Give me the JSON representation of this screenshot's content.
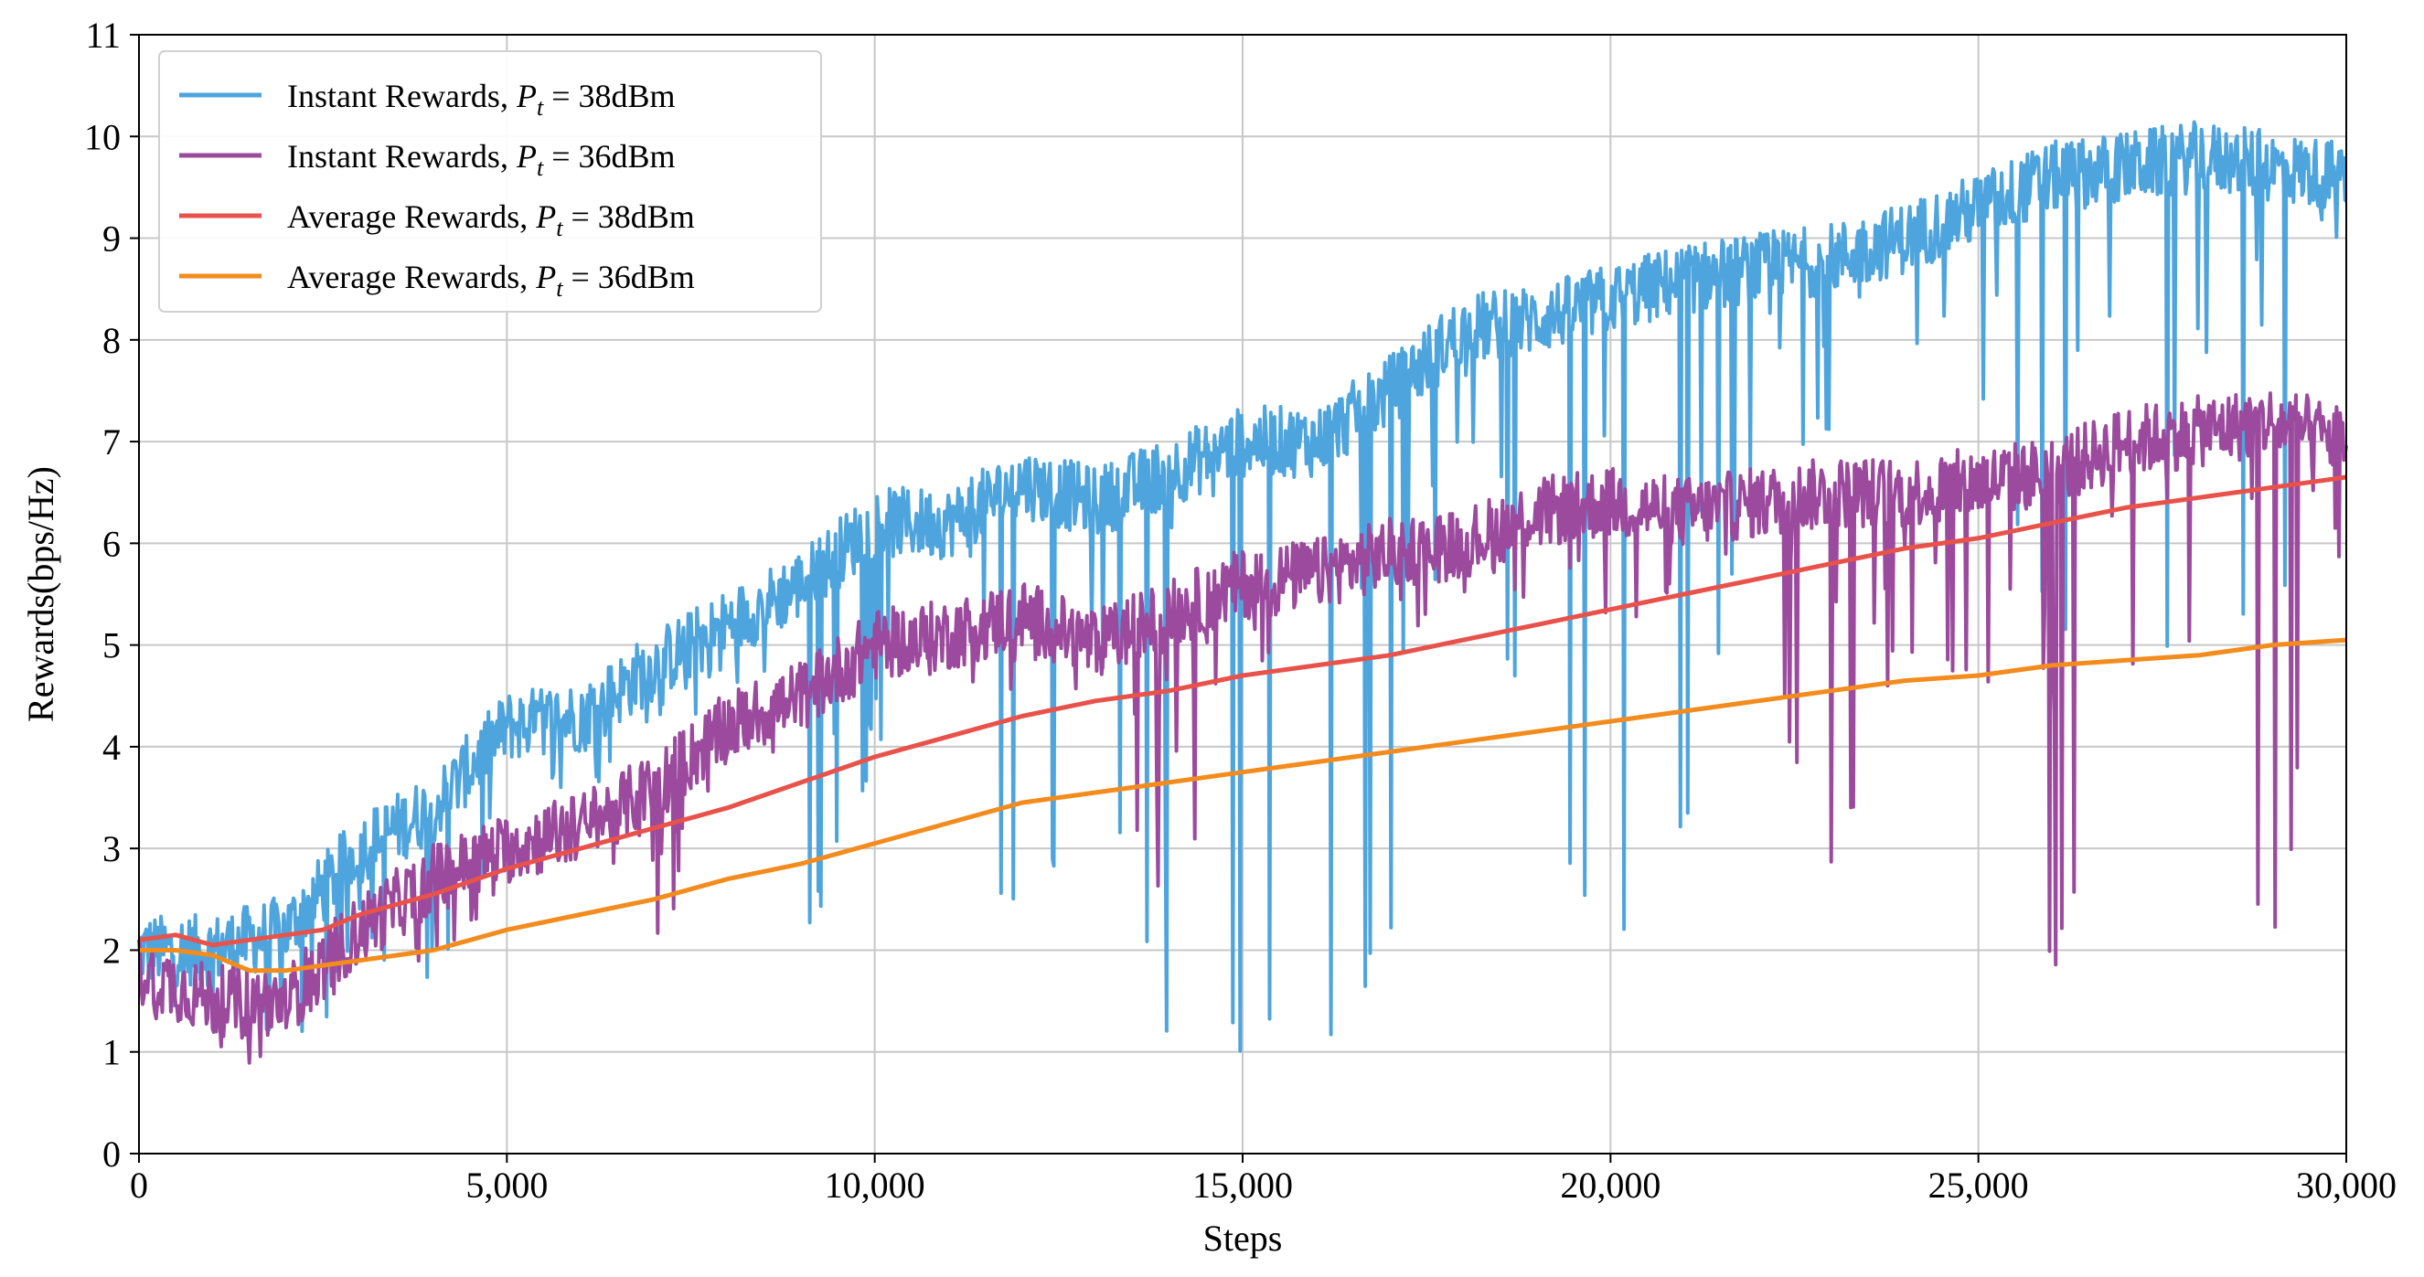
{
  "chart_data": {
    "type": "line",
    "title": "",
    "xlabel": "Steps",
    "ylabel": "Rewards(bps/Hz)",
    "xlim": [
      0,
      30000
    ],
    "ylim": [
      0,
      11
    ],
    "grid": true,
    "legend_position": "top-left",
    "xticks": [
      0,
      5000,
      10000,
      15000,
      20000,
      25000,
      30000
    ],
    "xtick_labels": [
      "0",
      "5,000",
      "10,000",
      "15,000",
      "20,000",
      "25,000",
      "30,000"
    ],
    "yticks": [
      0,
      1,
      2,
      3,
      4,
      5,
      6,
      7,
      8,
      9,
      10,
      11
    ],
    "ytick_labels": [
      "0",
      "1",
      "2",
      "3",
      "4",
      "5",
      "6",
      "7",
      "8",
      "9",
      "10",
      "11"
    ],
    "series": [
      {
        "name": "Instant Rewards, Pt = 38dBm",
        "legend_prefix": "Instant Rewards, ",
        "legend_suffix": " = 38dBm",
        "color": "#4EA5DE",
        "x": [
          0,
          1000,
          2000,
          3000,
          4000,
          5000,
          6000,
          7000,
          8000,
          9000,
          10000,
          11000,
          12000,
          13000,
          14000,
          15000,
          16000,
          17000,
          18000,
          19000,
          20000,
          21000,
          22000,
          23000,
          24000,
          25000,
          26000,
          27000,
          28000,
          29000,
          30000
        ],
        "values": [
          2.0,
          2.0,
          2.2,
          3.0,
          3.4,
          4.2,
          4.3,
          4.8,
          5.2,
          5.6,
          6.2,
          6.2,
          6.6,
          6.4,
          6.7,
          7.0,
          7.0,
          7.5,
          8.1,
          8.2,
          8.4,
          8.6,
          8.7,
          8.8,
          9.0,
          9.3,
          9.6,
          9.7,
          9.8,
          9.7,
          9.6
        ],
        "dips": [
          [
            1.4,
            1.2,
            0.9,
            1.6,
            1.5,
            3.1,
            3.6,
            3.8,
            4.5,
            1.7,
            3.9,
            4.7,
            1.7,
            3.5,
            0.9,
            1.0,
            0.85,
            2.0,
            7.2,
            3.0,
            1.5,
            2.7,
            7.1,
            6.8,
            7.4,
            7.5,
            4.8,
            4.6,
            5.0,
            4.6,
            9.4
          ]
        ]
      },
      {
        "name": "Instant Rewards, Pt = 36dBm",
        "legend_prefix": "Instant Rewards, ",
        "legend_suffix": " = 36dBm",
        "color": "#9B4A9E",
        "x": [
          0,
          1000,
          2000,
          3000,
          4000,
          5000,
          6000,
          7000,
          8000,
          9000,
          10000,
          11000,
          12000,
          13000,
          14000,
          15000,
          16000,
          17000,
          18000,
          19000,
          20000,
          21000,
          22000,
          23000,
          24000,
          25000,
          26000,
          27000,
          28000,
          29000,
          30000
        ],
        "values": [
          1.8,
          1.5,
          1.5,
          2.2,
          2.7,
          3.0,
          3.2,
          3.6,
          4.2,
          4.5,
          5.0,
          5.1,
          5.3,
          5.0,
          5.3,
          5.6,
          5.7,
          5.9,
          6.0,
          6.3,
          6.4,
          6.3,
          6.4,
          6.5,
          6.5,
          6.6,
          6.7,
          7.0,
          7.1,
          7.2,
          7.0
        ],
        "dips": [
          [
            0.6,
            0.9,
            0.85,
            1.8,
            1.4,
            2.8,
            3.0,
            1.9,
            3.8,
            4.0,
            4.5,
            4.4,
            4.5,
            4.4,
            2.0,
            4.6,
            4.8,
            5.0,
            5.4,
            5.4,
            4.9,
            5.0,
            5.0,
            2.7,
            4.8,
            4.7,
            1.4,
            5.0,
            2.6,
            1.7,
            6.3
          ]
        ]
      },
      {
        "name": "Average Rewards, Pt = 38dBm",
        "legend_prefix": "Average Rewards, ",
        "legend_suffix": " = 38dBm",
        "color": "#E8524A",
        "x": [
          0,
          500,
          1000,
          1500,
          2000,
          2500,
          3000,
          4000,
          5000,
          6000,
          7000,
          8000,
          9000,
          10000,
          11000,
          12000,
          13000,
          14000,
          15000,
          16000,
          17000,
          18000,
          19000,
          20000,
          21000,
          22000,
          23000,
          24000,
          25000,
          26000,
          27000,
          28000,
          29000,
          30000
        ],
        "values": [
          2.1,
          2.15,
          2.05,
          2.1,
          2.15,
          2.2,
          2.35,
          2.55,
          2.8,
          3.0,
          3.2,
          3.4,
          3.65,
          3.9,
          4.1,
          4.3,
          4.45,
          4.55,
          4.7,
          4.8,
          4.9,
          5.05,
          5.2,
          5.35,
          5.5,
          5.65,
          5.8,
          5.95,
          6.05,
          6.2,
          6.35,
          6.45,
          6.55,
          6.65
        ]
      },
      {
        "name": "Average Rewards, Pt = 36dBm",
        "legend_prefix": "Average Rewards, ",
        "legend_suffix": " = 36dBm",
        "color": "#F38B1D",
        "x": [
          0,
          500,
          1000,
          1500,
          2000,
          2500,
          3000,
          4000,
          5000,
          6000,
          7000,
          8000,
          9000,
          10000,
          11000,
          12000,
          13000,
          14000,
          15000,
          16000,
          17000,
          18000,
          19000,
          20000,
          21000,
          22000,
          23000,
          24000,
          25000,
          26000,
          27000,
          28000,
          29000,
          30000
        ],
        "values": [
          2.0,
          2.0,
          1.95,
          1.8,
          1.8,
          1.85,
          1.9,
          2.0,
          2.2,
          2.35,
          2.5,
          2.7,
          2.85,
          3.05,
          3.25,
          3.45,
          3.55,
          3.65,
          3.75,
          3.85,
          3.95,
          4.05,
          4.15,
          4.25,
          4.35,
          4.45,
          4.55,
          4.65,
          4.7,
          4.8,
          4.85,
          4.9,
          5.0,
          5.05
        ]
      }
    ],
    "legend_symbol": "P",
    "legend_symbol_sub": "t"
  }
}
